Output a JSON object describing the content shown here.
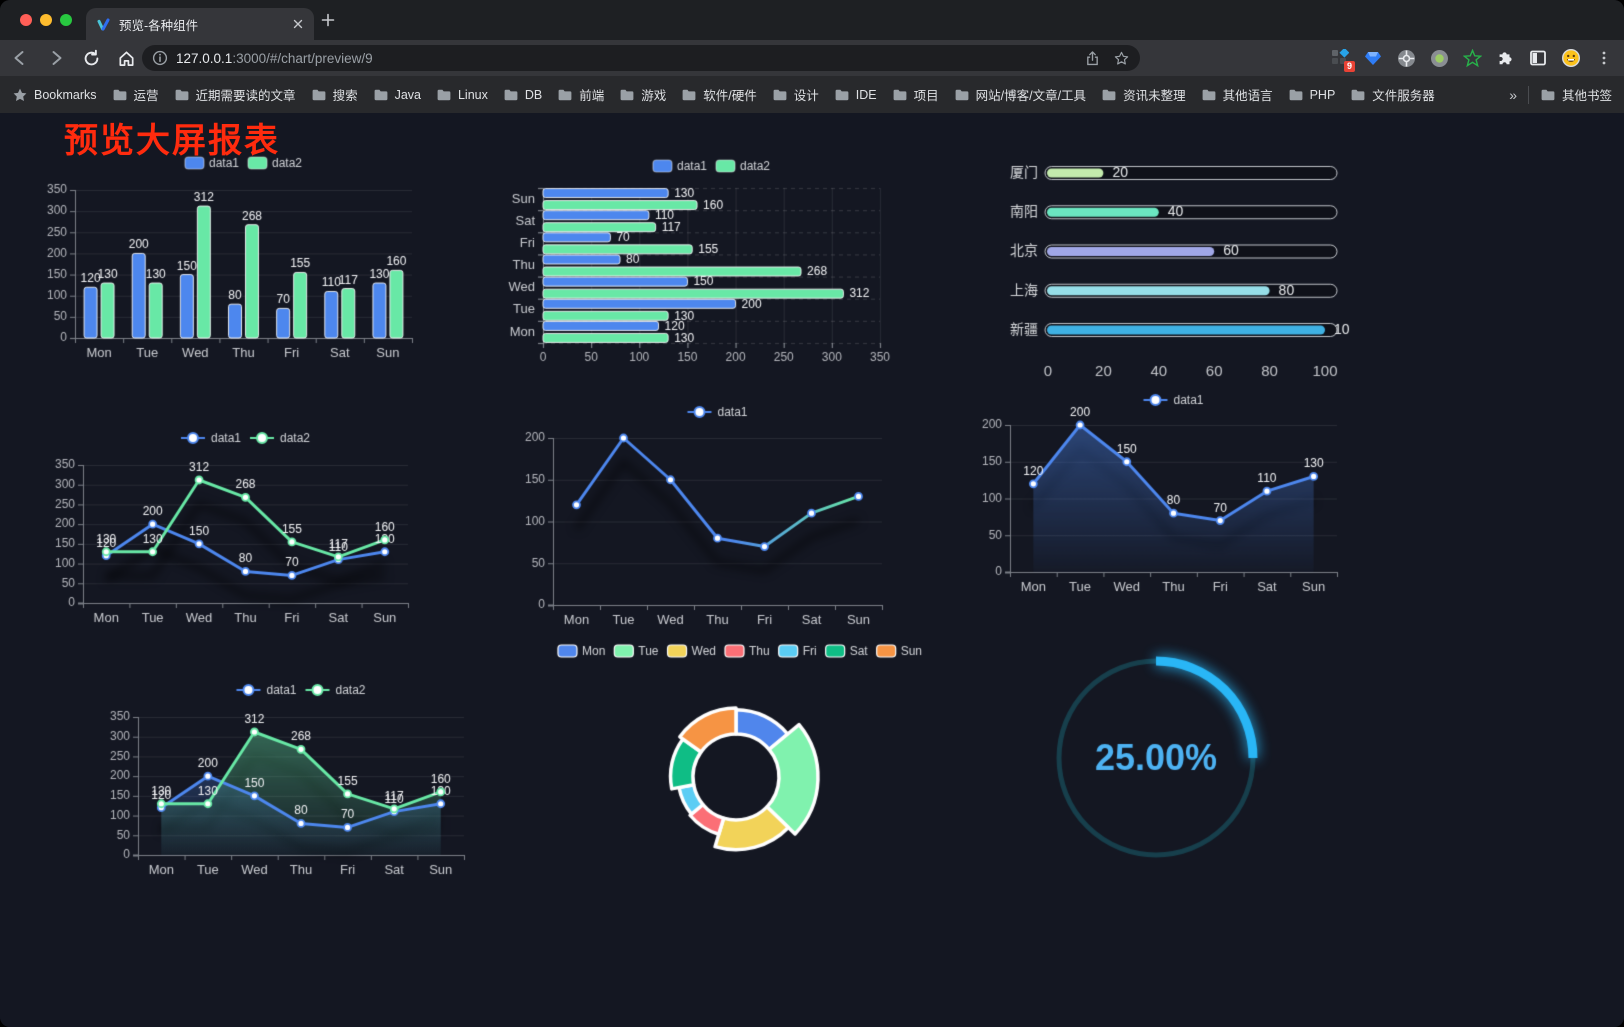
{
  "browser": {
    "tab_title": "预览-各种组件",
    "url_host": "127.0.0.1",
    "url_rest": ":3000/#/chart/preview/9",
    "extension_badge": "9",
    "bookmarks_label": "Bookmarks",
    "bookmarks": [
      "运营",
      "近期需要读的文章",
      "搜索",
      "Java",
      "Linux",
      "DB",
      "前端",
      "游戏",
      "软件/硬件",
      "设计",
      "IDE",
      "项目",
      "网站/博客/文章/工具",
      "资讯未整理",
      "其他语言",
      "PHP",
      "文件服务器"
    ],
    "bookmarks_overflow": "»",
    "other_bookmarks": "其他书签"
  },
  "page": {
    "title": "预览大屏报表",
    "title_color": "#ff2b0e",
    "background": "#141722"
  },
  "chart_data": [
    {
      "id": "c0",
      "type": "bar",
      "categories": [
        "Mon",
        "Tue",
        "Wed",
        "Thu",
        "Fri",
        "Sat",
        "Sun"
      ],
      "series": [
        {
          "name": "data1",
          "color": "#4d87ee",
          "values": [
            120,
            200,
            150,
            80,
            70,
            110,
            130
          ]
        },
        {
          "name": "data2",
          "color": "#68e8a6",
          "values": [
            130,
            130,
            312,
            268,
            155,
            117,
            160
          ]
        }
      ],
      "ylim": [
        0,
        350
      ],
      "ytick": 50,
      "legend_position": "top",
      "grid": true
    },
    {
      "id": "c1",
      "type": "hbar",
      "categories_top_to_bottom": [
        "Sun",
        "Sat",
        "Fri",
        "Thu",
        "Wed",
        "Tue",
        "Mon"
      ],
      "series": [
        {
          "name": "data1",
          "color": "#4d87ee",
          "values_top_to_bottom": [
            130,
            110,
            70,
            80,
            150,
            200,
            120
          ]
        },
        {
          "name": "data2",
          "color": "#68e8a6",
          "values_top_to_bottom": [
            160,
            117,
            155,
            268,
            312,
            130,
            130
          ]
        }
      ],
      "xlim": [
        0,
        350
      ],
      "xtick": 50,
      "legend_position": "top",
      "grid": true
    },
    {
      "id": "c2",
      "type": "capsule-bar",
      "items": [
        {
          "label": "厦门",
          "value": 20,
          "color": "#c4ebad"
        },
        {
          "label": "南阳",
          "value": 40,
          "color": "#6be6c1"
        },
        {
          "label": "北京",
          "value": 60,
          "color": "#a0a7e6"
        },
        {
          "label": "上海",
          "value": 80,
          "color": "#96dee8"
        },
        {
          "label": "新疆",
          "value": 100,
          "color": "#3fb1e3"
        }
      ],
      "xlim": [
        0,
        100
      ],
      "xticks": [
        0,
        20,
        40,
        60,
        80,
        100
      ]
    },
    {
      "id": "c3",
      "type": "line",
      "categories": [
        "Mon",
        "Tue",
        "Wed",
        "Thu",
        "Fri",
        "Sat",
        "Sun"
      ],
      "series": [
        {
          "name": "data1",
          "color": "#4d87ee",
          "values": [
            120,
            200,
            150,
            80,
            70,
            110,
            130
          ]
        },
        {
          "name": "data2",
          "color": "#68e8a6",
          "values": [
            130,
            130,
            312,
            268,
            155,
            117,
            160
          ]
        }
      ],
      "ylim": [
        0,
        350
      ],
      "ytick": 50,
      "point_labels": true,
      "legend_position": "top"
    },
    {
      "id": "c4",
      "type": "line",
      "categories": [
        "Mon",
        "Tue",
        "Wed",
        "Thu",
        "Fri",
        "Sat",
        "Sun"
      ],
      "series": [
        {
          "name": "data1",
          "color": "#4d87ee",
          "gradient": [
            "#4d87ee",
            "#68e8a6"
          ],
          "values": [
            120,
            200,
            150,
            80,
            70,
            110,
            130
          ]
        }
      ],
      "ylim": [
        0,
        200
      ],
      "ytick": 50,
      "point_labels": false,
      "legend_position": "top"
    },
    {
      "id": "c5",
      "type": "line",
      "categories": [
        "Mon",
        "Tue",
        "Wed",
        "Thu",
        "Fri",
        "Sat",
        "Sun"
      ],
      "series": [
        {
          "name": "data1",
          "color": "#4d87ee",
          "area": true,
          "values": [
            120,
            200,
            150,
            80,
            70,
            110,
            130
          ]
        }
      ],
      "ylim": [
        0,
        200
      ],
      "ytick": 50,
      "point_labels": true,
      "legend_position": "top"
    },
    {
      "id": "c6",
      "type": "line",
      "categories": [
        "Mon",
        "Tue",
        "Wed",
        "Thu",
        "Fri",
        "Sat",
        "Sun"
      ],
      "series": [
        {
          "name": "data1",
          "color": "#4d87ee",
          "area": true,
          "values": [
            120,
            200,
            150,
            80,
            70,
            110,
            130
          ]
        },
        {
          "name": "data2",
          "color": "#68e8a6",
          "area": true,
          "values": [
            130,
            130,
            312,
            268,
            155,
            117,
            160
          ]
        }
      ],
      "ylim": [
        0,
        350
      ],
      "ytick": 50,
      "point_labels": true,
      "legend_position": "top"
    },
    {
      "id": "c7",
      "type": "pie",
      "style": "rose-donut",
      "items": [
        {
          "label": "Mon",
          "value": 120,
          "color": "#5086ec"
        },
        {
          "label": "Tue",
          "value": 200,
          "color": "#80f2ae"
        },
        {
          "label": "Wed",
          "value": 150,
          "color": "#f2d359"
        },
        {
          "label": "Thu",
          "value": 80,
          "color": "#fb6f76"
        },
        {
          "label": "Fri",
          "value": 70,
          "color": "#5bcdf4"
        },
        {
          "label": "Sat",
          "value": 110,
          "color": "#0fbd85"
        },
        {
          "label": "Sun",
          "value": 130,
          "color": "#f69444"
        }
      ],
      "legend_position": "top"
    },
    {
      "id": "c8",
      "type": "gauge",
      "value_percent": 25,
      "display": "25.00%",
      "arc_color": "#29b6f6",
      "track_color": "#173f4c",
      "text_color": "#4db2f2"
    }
  ]
}
